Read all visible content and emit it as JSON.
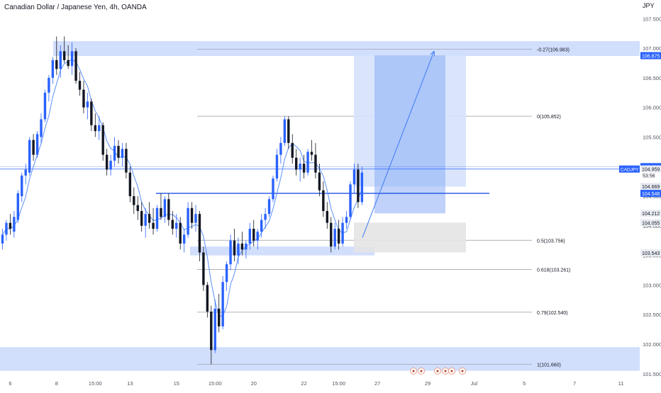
{
  "header": {
    "title": "Canadian Dollar / Japanese Yen, 4h, OANDA"
  },
  "currency": "JPY",
  "colors": {
    "up": "#2962ff",
    "down": "#131722",
    "ma": "#5b8ff9",
    "zone": "#c9d8fb",
    "fib": "#9598a1",
    "level": "#2962ff",
    "text": "#131722",
    "axis_text": "#50535e"
  },
  "chart_data": {
    "type": "candlestick",
    "symbol": "CADJPY",
    "ylim": [
      101.45,
      107.6
    ],
    "y_ticks": [
      101.5,
      102.0,
      102.5,
      103.0,
      103.5,
      104.0,
      104.5,
      105.0,
      105.5,
      106.0,
      106.5,
      107.0,
      107.5
    ],
    "y_tick_labels": [
      "101.500",
      "102.000",
      "102.500",
      "103.000",
      "103.500",
      "104.000",
      "104.500",
      "105.000",
      "105.500",
      "106.000",
      "106.500",
      "107.000",
      "107.500"
    ],
    "x_ticks": [
      {
        "bar": 2,
        "label": "6"
      },
      {
        "bar": 14,
        "label": "8"
      },
      {
        "bar": 24,
        "label": "15:00"
      },
      {
        "bar": 33,
        "label": "13"
      },
      {
        "bar": 45,
        "label": "15"
      },
      {
        "bar": 55,
        "label": "15:00"
      },
      {
        "bar": 65,
        "label": "20"
      },
      {
        "bar": 78,
        "label": "22"
      },
      {
        "bar": 87,
        "label": "15:00"
      },
      {
        "bar": 97,
        "label": "27"
      },
      {
        "bar": 110,
        "label": "29"
      },
      {
        "bar": 122,
        "label": "Jul"
      },
      {
        "bar": 135,
        "label": "5"
      },
      {
        "bar": 148,
        "label": "7"
      },
      {
        "bar": 160,
        "label": "11"
      }
    ],
    "candles": [
      [
        103.7,
        103.95,
        103.6,
        103.85
      ],
      [
        103.85,
        104.1,
        103.75,
        104.05
      ],
      [
        104.05,
        104.2,
        103.85,
        103.95
      ],
      [
        103.9,
        104.25,
        103.8,
        104.15
      ],
      [
        104.1,
        104.6,
        104.05,
        104.55
      ],
      [
        104.5,
        104.9,
        104.4,
        104.85
      ],
      [
        104.85,
        105.05,
        104.7,
        104.95
      ],
      [
        104.9,
        105.5,
        104.85,
        105.45
      ],
      [
        105.45,
        105.55,
        105.1,
        105.2
      ],
      [
        105.2,
        105.6,
        105.15,
        105.55
      ],
      [
        105.5,
        105.9,
        105.4,
        105.8
      ],
      [
        105.8,
        106.3,
        105.75,
        106.25
      ],
      [
        106.25,
        106.55,
        106.1,
        106.5
      ],
      [
        106.5,
        106.85,
        106.4,
        106.8
      ],
      [
        106.8,
        107.2,
        106.55,
        106.65
      ],
      [
        106.65,
        107.05,
        106.5,
        106.95
      ],
      [
        106.95,
        107.2,
        106.75,
        106.8
      ],
      [
        106.8,
        107.05,
        106.65,
        106.7
      ],
      [
        106.7,
        107.1,
        106.55,
        106.95
      ],
      [
        106.95,
        107.0,
        106.4,
        106.45
      ],
      [
        106.45,
        106.6,
        106.2,
        106.3
      ],
      [
        106.3,
        106.45,
        105.9,
        106.0
      ],
      [
        106.0,
        106.25,
        105.8,
        106.1
      ],
      [
        106.1,
        106.15,
        105.6,
        105.7
      ],
      [
        105.7,
        105.9,
        105.5,
        105.6
      ],
      [
        105.6,
        105.85,
        105.45,
        105.7
      ],
      [
        105.7,
        105.75,
        105.1,
        105.2
      ],
      [
        105.2,
        105.3,
        104.85,
        104.95
      ],
      [
        104.95,
        105.2,
        104.85,
        105.1
      ],
      [
        105.1,
        105.5,
        105.0,
        105.35
      ],
      [
        105.35,
        105.45,
        105.05,
        105.15
      ],
      [
        105.15,
        105.4,
        105.0,
        105.3
      ],
      [
        105.3,
        105.4,
        104.8,
        104.9
      ],
      [
        104.9,
        105.0,
        104.4,
        104.5
      ],
      [
        104.5,
        104.65,
        104.2,
        104.35
      ],
      [
        104.35,
        104.5,
        104.1,
        104.25
      ],
      [
        104.25,
        104.4,
        103.9,
        104.0
      ],
      [
        104.0,
        104.3,
        103.8,
        104.2
      ],
      [
        104.2,
        104.4,
        103.95,
        104.05
      ],
      [
        104.05,
        104.3,
        103.85,
        103.95
      ],
      [
        103.95,
        104.35,
        103.9,
        104.3
      ],
      [
        104.3,
        104.55,
        104.1,
        104.15
      ],
      [
        104.15,
        104.5,
        104.05,
        104.45
      ],
      [
        104.45,
        104.55,
        104.0,
        104.1
      ],
      [
        104.1,
        104.25,
        103.85,
        103.95
      ],
      [
        103.95,
        104.2,
        103.8,
        104.05
      ],
      [
        104.05,
        104.15,
        103.6,
        103.7
      ],
      [
        103.7,
        103.95,
        103.55,
        103.85
      ],
      [
        103.85,
        104.4,
        103.8,
        104.3
      ],
      [
        104.3,
        104.4,
        103.95,
        104.05
      ],
      [
        104.05,
        104.35,
        103.9,
        104.2
      ],
      [
        104.2,
        104.25,
        103.4,
        103.55
      ],
      [
        103.55,
        103.65,
        102.9,
        103.0
      ],
      [
        103.0,
        103.05,
        102.45,
        102.55
      ],
      [
        102.55,
        102.65,
        101.66,
        101.9
      ],
      [
        101.9,
        102.75,
        101.85,
        102.6
      ],
      [
        102.6,
        102.85,
        102.2,
        102.3
      ],
      [
        102.3,
        103.15,
        102.25,
        103.05
      ],
      [
        103.05,
        103.4,
        102.9,
        103.35
      ],
      [
        103.35,
        103.85,
        103.25,
        103.75
      ],
      [
        103.75,
        103.95,
        103.4,
        103.5
      ],
      [
        103.5,
        103.8,
        103.35,
        103.7
      ],
      [
        103.7,
        103.9,
        103.5,
        103.6
      ],
      [
        103.6,
        103.75,
        103.45,
        103.7
      ],
      [
        103.7,
        104.05,
        103.6,
        103.95
      ],
      [
        103.95,
        104.1,
        103.65,
        103.75
      ],
      [
        103.75,
        103.95,
        103.6,
        103.9
      ],
      [
        103.9,
        104.2,
        103.8,
        104.1
      ],
      [
        104.1,
        104.3,
        103.95,
        104.2
      ],
      [
        104.2,
        104.5,
        104.15,
        104.45
      ],
      [
        104.45,
        104.85,
        104.4,
        104.8
      ],
      [
        104.8,
        105.3,
        104.75,
        105.2
      ],
      [
        105.2,
        105.5,
        105.05,
        105.4
      ],
      [
        105.4,
        105.85,
        105.35,
        105.8
      ],
      [
        105.8,
        105.85,
        105.3,
        105.4
      ],
      [
        105.4,
        105.55,
        105.05,
        105.15
      ],
      [
        105.15,
        105.3,
        104.85,
        104.95
      ],
      [
        104.95,
        105.15,
        104.75,
        105.05
      ],
      [
        105.05,
        105.2,
        104.8,
        104.9
      ],
      [
        104.9,
        105.3,
        104.85,
        105.25
      ],
      [
        105.25,
        105.45,
        105.1,
        105.2
      ],
      [
        105.2,
        105.4,
        104.8,
        104.9
      ],
      [
        104.9,
        105.05,
        104.5,
        104.6
      ],
      [
        104.6,
        104.75,
        104.15,
        104.25
      ],
      [
        104.25,
        104.4,
        103.95,
        104.05
      ],
      [
        104.05,
        104.15,
        103.55,
        103.65
      ],
      [
        103.65,
        104.05,
        103.6,
        103.95
      ],
      [
        103.95,
        104.1,
        103.6,
        103.7
      ],
      [
        103.7,
        104.15,
        103.65,
        104.05
      ],
      [
        104.05,
        104.25,
        103.95,
        104.15
      ],
      [
        104.15,
        104.75,
        104.1,
        104.7
      ],
      [
        104.7,
        105.05,
        104.55,
        104.95
      ],
      [
        104.95,
        105.05,
        104.3,
        104.4
      ],
      [
        104.4,
        105.0,
        104.35,
        104.9
      ]
    ],
    "price_scale_labels": [
      {
        "price": 106.88,
        "text": "106.880"
      },
      {
        "price": 106.875,
        "text": "106.875"
      },
      {
        "price": 105.0,
        "text": "105.000"
      },
      {
        "price": 104.959,
        "text": "104.959"
      },
      {
        "price": 104.669,
        "text": "104.669"
      },
      {
        "price": 104.548,
        "text": "104.548"
      },
      {
        "price": 104.212,
        "text": "104.212"
      },
      {
        "price": 104.055,
        "text": "104.055"
      },
      {
        "price": 103.543,
        "text": "103.543"
      }
    ],
    "symbol_tag": "CADJPY",
    "countdown": "53:56",
    "fib_levels": [
      {
        "price": 106.983,
        "text": "-0.27(106.983)"
      },
      {
        "price": 105.852,
        "text": "0(105.852)"
      },
      {
        "price": 103.756,
        "text": "0.5(103.756)"
      },
      {
        "price": 103.261,
        "text": "0.618(103.261)"
      },
      {
        "price": 102.54,
        "text": "0.79(102.540)"
      },
      {
        "price": 101.66,
        "text": "1(101.660)"
      }
    ]
  }
}
